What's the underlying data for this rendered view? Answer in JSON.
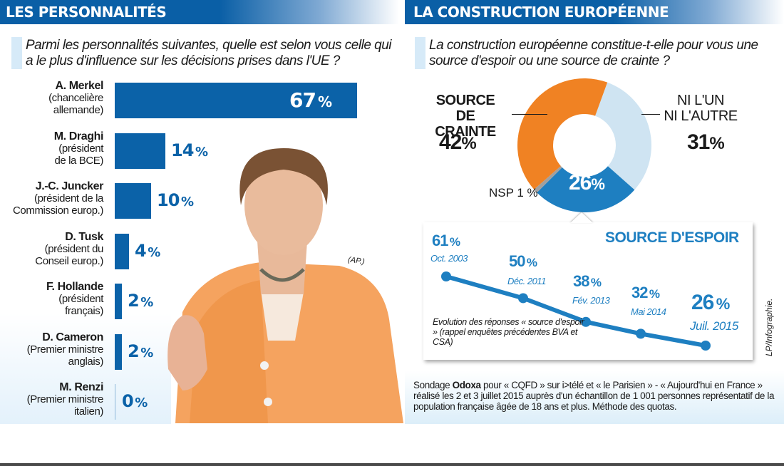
{
  "left_panel": {
    "title": "LES PERSONNALITÉS",
    "question": "Parmi les personnalités suivantes, quelle est selon vous celle qui a le plus d'influence sur les décisions prises dans l'UE ?",
    "photo_credit": "(AP.)"
  },
  "right_panel": {
    "title": "LA CONSTRUCTION EUROPÉENNE",
    "question": "La construction européenne constitue-t-elle pour vous une source d'espoir ou une source de crainte ?"
  },
  "colors": {
    "bar_blue": "#0b62a8",
    "orange": "#f08223",
    "light_blue": "#cfe4f2",
    "mid_blue": "#1e7fc1",
    "grey": "#a0a0a0"
  },
  "chart_data": [
    {
      "type": "bar",
      "orientation": "horizontal",
      "title": "Parmi les personnalités suivantes, quelle est selon vous celle qui a le plus d'influence sur les décisions prises dans l'UE ?",
      "categories": [
        {
          "name": "A. Merkel",
          "role_line1": "(chancelière",
          "role_line2": "allemande)"
        },
        {
          "name": "M. Draghi",
          "role_line1": "(président",
          "role_line2": "de la BCE)"
        },
        {
          "name": "J.-C. Juncker",
          "role_line1": "(président de la",
          "role_line2": "Commission europ.)"
        },
        {
          "name": "D. Tusk",
          "role_line1": "(président du",
          "role_line2": "Conseil europ.)"
        },
        {
          "name": "F. Hollande",
          "role_line1": "(président",
          "role_line2": "français)"
        },
        {
          "name": "D. Cameron",
          "role_line1": "(Premier ministre",
          "role_line2": "anglais)"
        },
        {
          "name": "M. Renzi",
          "role_line1": "(Premier ministre",
          "role_line2": "italien)"
        }
      ],
      "values": [
        67,
        14,
        10,
        4,
        2,
        2,
        0
      ],
      "value_labels": [
        "67",
        "14",
        "10",
        "4",
        "2",
        "2",
        "0"
      ],
      "unit": "%",
      "xlim": [
        0,
        67
      ]
    },
    {
      "type": "pie",
      "variant": "donut",
      "title": "La construction européenne constitue-t-elle pour vous une source d'espoir ou une source de crainte ?",
      "slices": [
        {
          "label": "NI L'UN NI L'AUTRE",
          "label_line1": "NI L'UN",
          "label_line2": "NI L'AUTRE",
          "value": 31,
          "color": "#cfe4f2"
        },
        {
          "label": "SOURCE D'ESPOIR",
          "value": 26,
          "color": "#1e7fc1"
        },
        {
          "label": "NSP",
          "value": 1,
          "color": "#a0a0a0"
        },
        {
          "label": "SOURCE DE CRAINTE",
          "label_line1": "SOURCE",
          "label_line2": "DE CRAINTE",
          "value": 42,
          "color": "#f08223"
        }
      ],
      "value_labels": {
        "crainte": "42",
        "ni": "31",
        "espoir": "26",
        "nsp": "NSP 1 %"
      },
      "unit": "%"
    },
    {
      "type": "line",
      "title": "SOURCE D'ESPOIR",
      "x": [
        "Oct. 2003",
        "Déc. 2011",
        "Fév. 2013",
        "Mai 2014",
        "Juil. 2015"
      ],
      "values": [
        61,
        50,
        38,
        32,
        26
      ],
      "value_labels": [
        "61",
        "50",
        "38",
        "32",
        "26"
      ],
      "unit": "%",
      "ylim": [
        20,
        65
      ],
      "annotation": "Evolution des réponses « source d'espoir » (rappel enquêtes précédentes BVA et CSA)"
    }
  ],
  "source_note": {
    "part1": "Sondage ",
    "bold": "Odoxa",
    "part2": " pour « CQFD » sur i>télé et « le Parisien » - « Aujourd'hui en France » réalisé les 2 et 3 juillet 2015 auprès d'un échantillon de 1 001 personnes représentatif de la population française âgée de 18 ans et plus. Méthode des quotas."
  },
  "credit": "LP/Infographie."
}
